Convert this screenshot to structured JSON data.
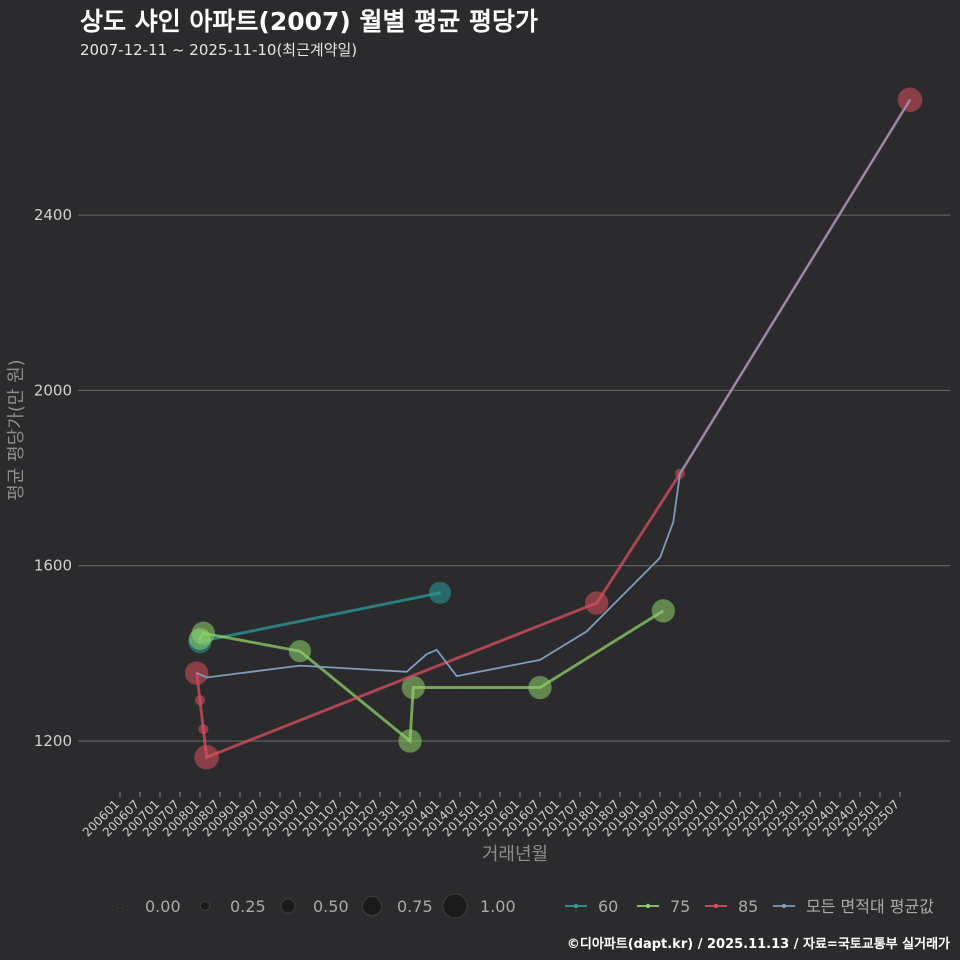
{
  "chart_data": {
    "type": "line",
    "title": "상도 샤인 아파트(2007) 월별 평균 평당가",
    "subtitle": "2007-12-11 ~ 2025-11-10(최근계약일)",
    "xlabel": "거래년월",
    "ylabel": "평균 평당가(만 원)",
    "footer": "©디아파트(dapt.kr) / 2025.11.13 / 자료=국토교통부 실거래가",
    "x_domain": [
      "2006-01",
      "2026-01"
    ],
    "ylim": [
      1100,
      2700
    ],
    "yticks": [
      1200,
      1600,
      2000,
      2400
    ],
    "x_tick_labels": [
      "200601",
      "200607",
      "200701",
      "200707",
      "200801",
      "200807",
      "200901",
      "200907",
      "201001",
      "201007",
      "201101",
      "201107",
      "201201",
      "201207",
      "201301",
      "201307",
      "201401",
      "201407",
      "201501",
      "201507",
      "201601",
      "201607",
      "201701",
      "201707",
      "201801",
      "201807",
      "201901",
      "201907",
      "202001",
      "202007",
      "202101",
      "202107",
      "202201",
      "202207",
      "202301",
      "202307",
      "202401",
      "202407",
      "202501",
      "202507"
    ],
    "series": [
      {
        "name": "60",
        "color": "#2a9d9a",
        "points": [
          {
            "x": "2008-01",
            "y": 1427,
            "size": 0.6
          },
          {
            "x": "2014-01",
            "y": 1538,
            "size": 0.55
          }
        ]
      },
      {
        "name": "75",
        "color": "#8fd16a",
        "points": [
          {
            "x": "2008-01",
            "y": 1433,
            "size": 0.55
          },
          {
            "x": "2008-02",
            "y": 1446,
            "size": 0.6
          },
          {
            "x": "2010-07",
            "y": 1405,
            "size": 0.55
          },
          {
            "x": "2013-04",
            "y": 1200,
            "size": 0.6
          },
          {
            "x": "2013-05",
            "y": 1322,
            "size": 0.6
          },
          {
            "x": "2016-07",
            "y": 1322,
            "size": 0.6
          },
          {
            "x": "2019-08",
            "y": 1497,
            "size": 0.6
          }
        ]
      },
      {
        "name": "85",
        "color": "#d9505e",
        "points": [
          {
            "x": "2007-12",
            "y": 1355,
            "size": 0.6
          },
          {
            "x": "2008-01",
            "y": 1293,
            "size": 0.05
          },
          {
            "x": "2008-02",
            "y": 1227,
            "size": 0.05
          },
          {
            "x": "2008-03",
            "y": 1163,
            "size": 0.65
          },
          {
            "x": "2017-12",
            "y": 1515,
            "size": 0.6
          },
          {
            "x": "2020-01",
            "y": 1810,
            "size": 0.05
          },
          {
            "x": "2025-10",
            "y": 2663,
            "size": 0.65
          }
        ]
      },
      {
        "name": "모든 면적대 평균값",
        "color": "#7f9bc0",
        "points": [
          {
            "x": "2007-12",
            "y": 1355
          },
          {
            "x": "2008-03",
            "y": 1345
          },
          {
            "x": "2010-07",
            "y": 1372
          },
          {
            "x": "2013-03",
            "y": 1358
          },
          {
            "x": "2013-09",
            "y": 1398
          },
          {
            "x": "2013-12",
            "y": 1408
          },
          {
            "x": "2014-03",
            "y": 1378
          },
          {
            "x": "2014-06",
            "y": 1348
          },
          {
            "x": "2016-07",
            "y": 1385
          },
          {
            "x": "2017-09",
            "y": 1450
          },
          {
            "x": "2019-07",
            "y": 1618
          },
          {
            "x": "2019-11",
            "y": 1700
          },
          {
            "x": "2020-01",
            "y": 1810
          },
          {
            "x": "2025-10",
            "y": 2663
          }
        ]
      }
    ],
    "size_legend": {
      "labels": [
        "0.00",
        "0.25",
        "0.50",
        "0.75",
        "1.00"
      ],
      "values": [
        0,
        0.25,
        0.5,
        0.75,
        1.0
      ]
    }
  }
}
